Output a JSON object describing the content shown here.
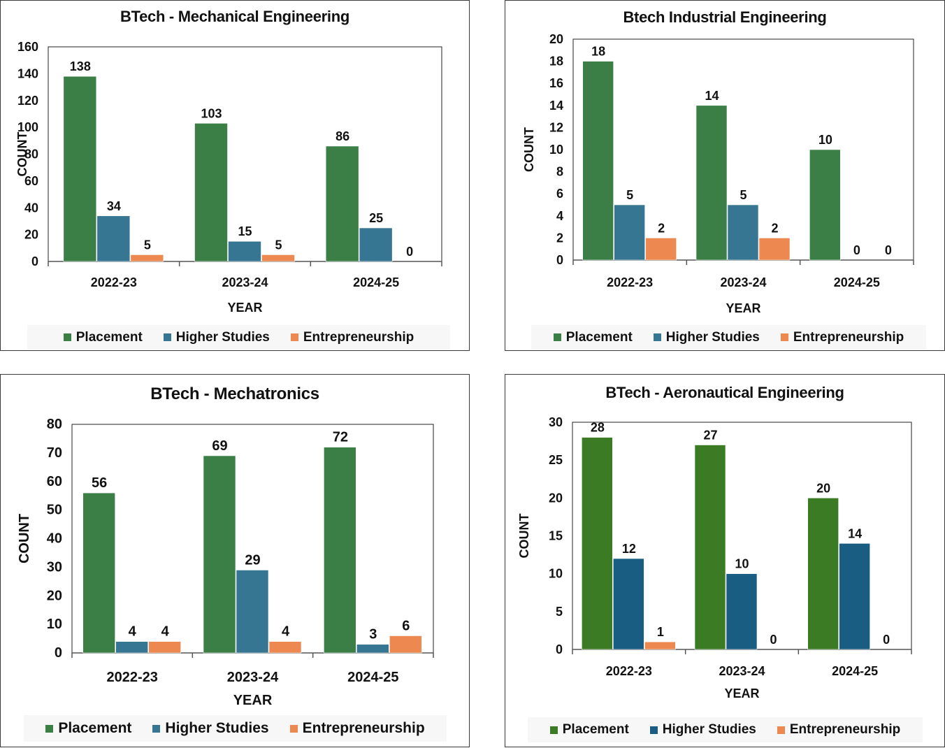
{
  "chart_data": [
    {
      "type": "bar",
      "title": "BTech - Mechanical Engineering",
      "xlabel": "YEAR",
      "ylabel": "COUNT",
      "categories": [
        "2022-23",
        "2023-24",
        "2024-25"
      ],
      "ylim": [
        0,
        160
      ],
      "yticks": [
        0,
        20,
        40,
        60,
        80,
        100,
        120,
        140,
        160
      ],
      "grid": false,
      "legend": "bottom",
      "series": [
        {
          "name": "Placement",
          "color": "#3b7f46",
          "values": [
            138,
            103,
            86
          ]
        },
        {
          "name": "Higher Studies",
          "color": "#377692",
          "values": [
            34,
            15,
            25
          ]
        },
        {
          "name": "Entrepreneurship",
          "color": "#ec8850",
          "values": [
            5,
            5,
            0
          ]
        }
      ]
    },
    {
      "type": "bar",
      "title": "Btech Industrial Engineering",
      "xlabel": "YEAR",
      "ylabel": "COUNT",
      "categories": [
        "2022-23",
        "2023-24",
        "2024-25"
      ],
      "ylim": [
        0,
        20
      ],
      "yticks": [
        0,
        2,
        4,
        6,
        8,
        10,
        12,
        14,
        16,
        18,
        20
      ],
      "grid": false,
      "legend": "bottom",
      "series": [
        {
          "name": "Placement",
          "color": "#3b7f46",
          "values": [
            18,
            14,
            10
          ]
        },
        {
          "name": "Higher Studies",
          "color": "#377692",
          "values": [
            5,
            5,
            0
          ]
        },
        {
          "name": "Entrepreneurship",
          "color": "#ec8850",
          "values": [
            2,
            2,
            0
          ]
        }
      ]
    },
    {
      "type": "bar",
      "title": "BTech - Mechatronics",
      "xlabel": "YEAR",
      "ylabel": "COUNT",
      "categories": [
        "2022-23",
        "2023-24",
        "2024-25"
      ],
      "ylim": [
        0,
        80
      ],
      "yticks": [
        0,
        10,
        20,
        30,
        40,
        50,
        60,
        70,
        80
      ],
      "grid": false,
      "legend": "bottom",
      "series": [
        {
          "name": "Placement",
          "color": "#3b7f46",
          "values": [
            56,
            69,
            72
          ]
        },
        {
          "name": "Higher Studies",
          "color": "#377692",
          "values": [
            4,
            29,
            3
          ]
        },
        {
          "name": "Entrepreneurship",
          "color": "#ec8850",
          "values": [
            4,
            4,
            6
          ]
        }
      ]
    },
    {
      "type": "bar",
      "title": "BTech - Aeronautical Engineering",
      "xlabel": "YEAR",
      "ylabel": "COUNT",
      "categories": [
        "2022-23",
        "2023-24",
        "2024-25"
      ],
      "ylim": [
        0,
        30
      ],
      "yticks": [
        0,
        5,
        10,
        15,
        20,
        25,
        30
      ],
      "grid": false,
      "legend": "bottom",
      "series": [
        {
          "name": "Placement",
          "color": "#3a7b24",
          "values": [
            28,
            27,
            20
          ]
        },
        {
          "name": "Higher Studies",
          "color": "#195e82",
          "values": [
            12,
            10,
            14
          ]
        },
        {
          "name": "Entrepreneurship",
          "color": "#ec8850",
          "values": [
            1,
            0,
            0
          ]
        }
      ]
    }
  ]
}
